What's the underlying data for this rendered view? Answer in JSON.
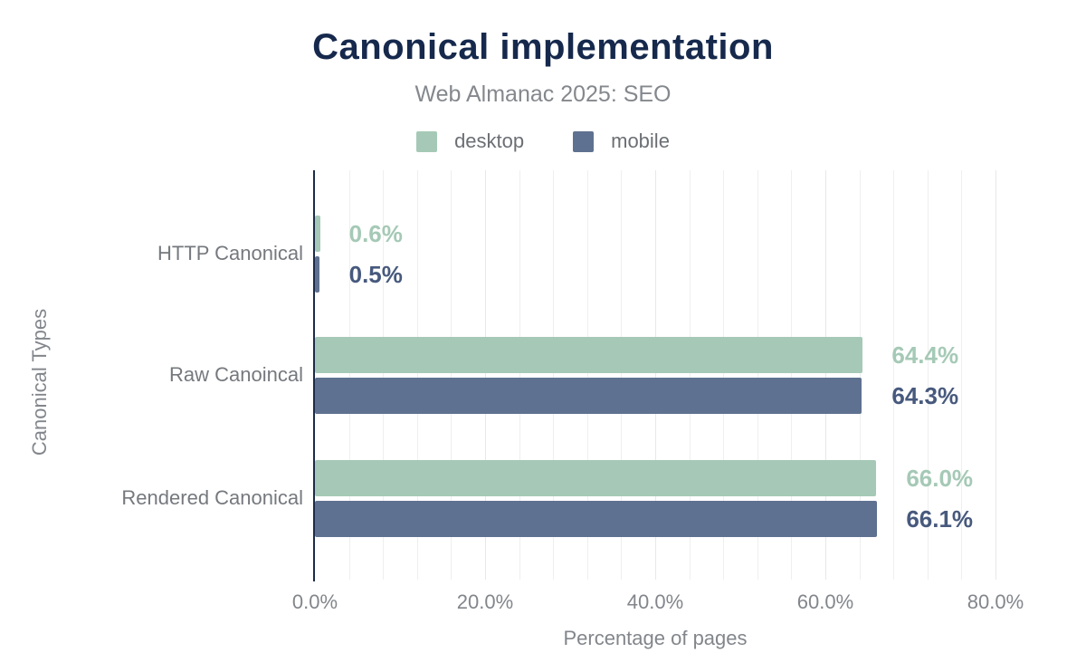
{
  "header": {
    "title": "Canonical implementation",
    "subtitle": "Web Almanac 2025: SEO"
  },
  "legend": {
    "items": [
      {
        "label": "desktop",
        "color": "#a5c9b6"
      },
      {
        "label": "mobile",
        "color": "#5f7190"
      }
    ]
  },
  "chart_data": {
    "type": "bar",
    "orientation": "horizontal",
    "title": "Canonical implementation",
    "subtitle": "Web Almanac 2025: SEO",
    "categories": [
      "HTTP Canonical",
      "Raw Canoincal",
      "Rendered Canonical"
    ],
    "series": [
      {
        "name": "desktop",
        "color": "#a5c9b6",
        "label_color": "#a5c9b6",
        "values": [
          0.6,
          64.4,
          66.0
        ],
        "value_labels": [
          "0.6%",
          "64.4%",
          "66.0%"
        ]
      },
      {
        "name": "mobile",
        "color": "#5f7190",
        "label_color": "#47597d",
        "values": [
          0.5,
          64.3,
          66.1
        ],
        "value_labels": [
          "0.5%",
          "64.3%",
          "66.1%"
        ]
      }
    ],
    "xlabel": "Percentage of pages",
    "ylabel": "Canonical Types",
    "xlim": [
      0,
      80
    ],
    "x_tick_values": [
      0,
      20,
      40,
      60,
      80
    ],
    "x_tick_labels": [
      "0.0%",
      "20.0%",
      "40.0%",
      "60.0%",
      "80.0%"
    ],
    "grid_step_pct": 4,
    "legend_position": "top",
    "grid": "vertical-only"
  },
  "colors": {
    "title": "#16294d",
    "subtitle_text": "#84888d",
    "axis_line": "#1c2b49",
    "muted_text": "#82868b",
    "category_text": "#75797e",
    "gridline": "#efefef",
    "background": "#ffffff"
  }
}
